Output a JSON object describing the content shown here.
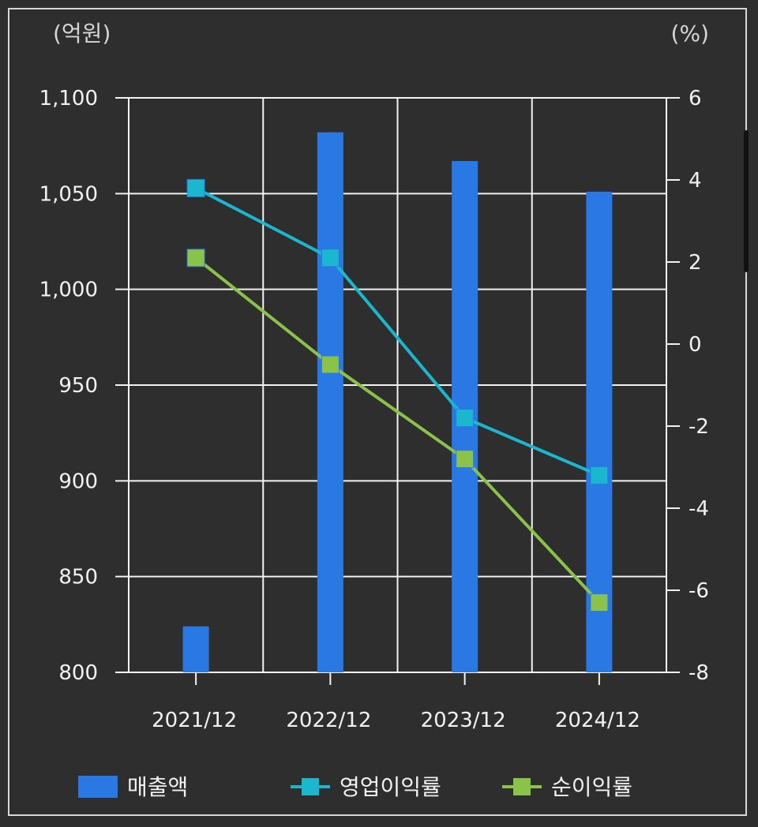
{
  "chart_data": {
    "type": "bar",
    "categories": [
      "2021/12",
      "2022/12",
      "2023/12",
      "2024/12"
    ],
    "left_axis": {
      "unit_label": "(억원)",
      "ylim": [
        800,
        1100
      ],
      "ticks": [
        "800",
        "850",
        "900",
        "950",
        "1,000",
        "1,050",
        "1,100"
      ],
      "tick_values": [
        800,
        850,
        900,
        950,
        1000,
        1050,
        1100
      ]
    },
    "right_axis": {
      "unit_label": "(%)",
      "ylim": [
        -8,
        6
      ],
      "ticks": [
        "-8",
        "-6",
        "-4",
        "-2",
        "0",
        "2",
        "4",
        "6"
      ],
      "tick_values": [
        -8,
        -6,
        -4,
        -2,
        0,
        2,
        4,
        6
      ]
    },
    "grid": true,
    "legend_position": "bottom",
    "series": [
      {
        "name": "매출액",
        "kind": "bar",
        "axis": "left",
        "color": "#2a78e4",
        "values": [
          824,
          1082,
          1067,
          1051
        ]
      },
      {
        "name": "영업이익률",
        "kind": "line",
        "axis": "right",
        "color": "#1bb7cf",
        "values": [
          3.8,
          2.1,
          -1.8,
          -3.2
        ]
      },
      {
        "name": "순이익률",
        "kind": "line",
        "axis": "right",
        "color": "#8bc34a",
        "values": [
          2.1,
          -0.5,
          -2.8,
          -6.3
        ]
      }
    ]
  }
}
